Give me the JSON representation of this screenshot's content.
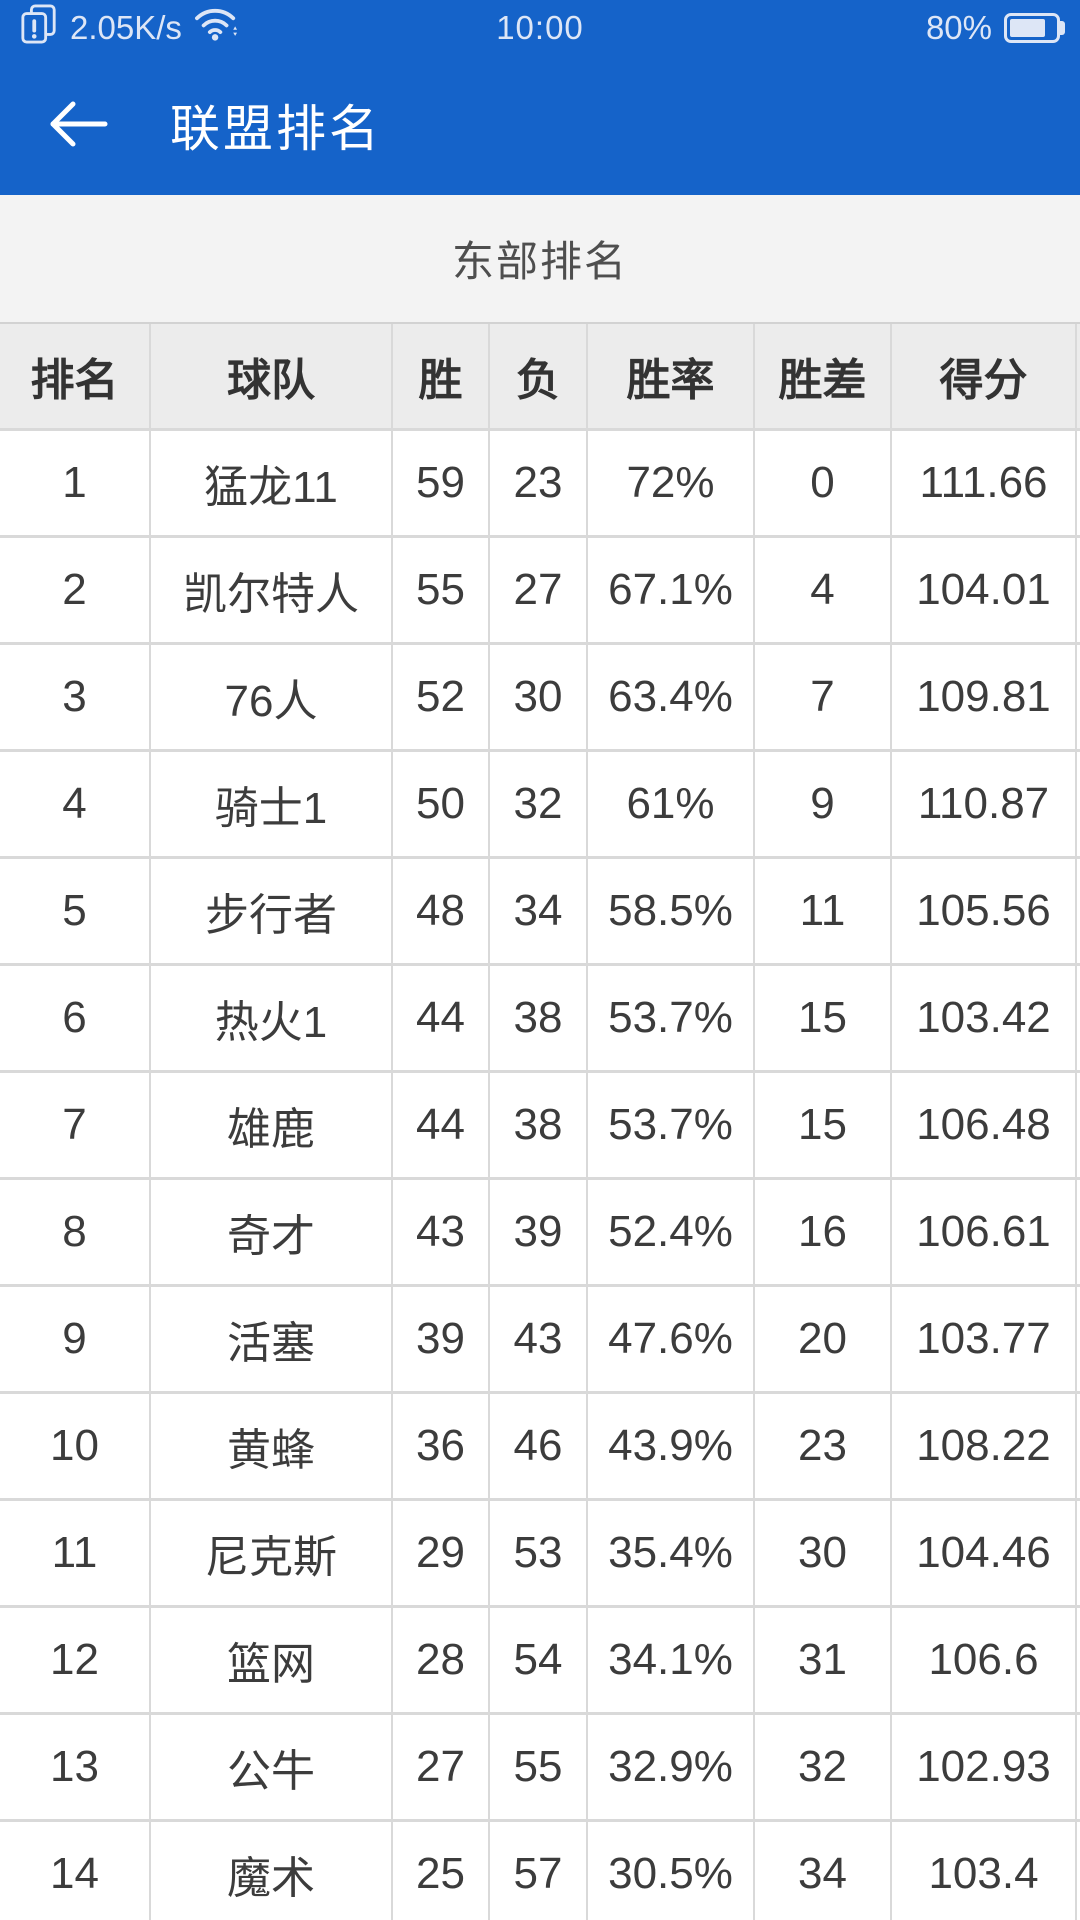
{
  "status_bar": {
    "network_speed": "2.05K/s",
    "time": "10:00",
    "battery_percent": "80%",
    "battery_level": 0.8
  },
  "app_bar": {
    "title": "联盟排名"
  },
  "section": {
    "title": "东部排名"
  },
  "table": {
    "columns": [
      "排名",
      "球队",
      "胜",
      "负",
      "胜率",
      "胜差",
      "得分"
    ],
    "rows": [
      [
        "1",
        "猛龙11",
        "59",
        "23",
        "72%",
        "0",
        "111.66"
      ],
      [
        "2",
        "凯尔特人",
        "55",
        "27",
        "67.1%",
        "4",
        "104.01"
      ],
      [
        "3",
        "76人",
        "52",
        "30",
        "63.4%",
        "7",
        "109.81"
      ],
      [
        "4",
        "骑士1",
        "50",
        "32",
        "61%",
        "9",
        "110.87"
      ],
      [
        "5",
        "步行者",
        "48",
        "34",
        "58.5%",
        "11",
        "105.56"
      ],
      [
        "6",
        "热火1",
        "44",
        "38",
        "53.7%",
        "15",
        "103.42"
      ],
      [
        "7",
        "雄鹿",
        "44",
        "38",
        "53.7%",
        "15",
        "106.48"
      ],
      [
        "8",
        "奇才",
        "43",
        "39",
        "52.4%",
        "16",
        "106.61"
      ],
      [
        "9",
        "活塞",
        "39",
        "43",
        "47.6%",
        "20",
        "103.77"
      ],
      [
        "10",
        "黄蜂",
        "36",
        "46",
        "43.9%",
        "23",
        "108.22"
      ],
      [
        "11",
        "尼克斯",
        "29",
        "53",
        "35.4%",
        "30",
        "104.46"
      ],
      [
        "12",
        "篮网",
        "28",
        "54",
        "34.1%",
        "31",
        "106.6"
      ],
      [
        "13",
        "公牛",
        "27",
        "55",
        "32.9%",
        "32",
        "102.93"
      ],
      [
        "14",
        "魔术",
        "25",
        "57",
        "30.5%",
        "34",
        "103.4"
      ]
    ]
  },
  "icons": {
    "floating_window": "overlapping-pages-exclamation",
    "wifi": "wifi-arcs-with-sync-arrows",
    "battery": "battery-outline-80-filled",
    "back": "left-arrow"
  },
  "colors": {
    "app_blue": "#1563c9",
    "section_bg": "#f3f3f3",
    "header_row_bg": "#ececec",
    "row_bg": "#ffffff",
    "table_border": "#d9d9d9",
    "text_dark": "#3c3c3c",
    "status_text": "#dde6f6"
  }
}
